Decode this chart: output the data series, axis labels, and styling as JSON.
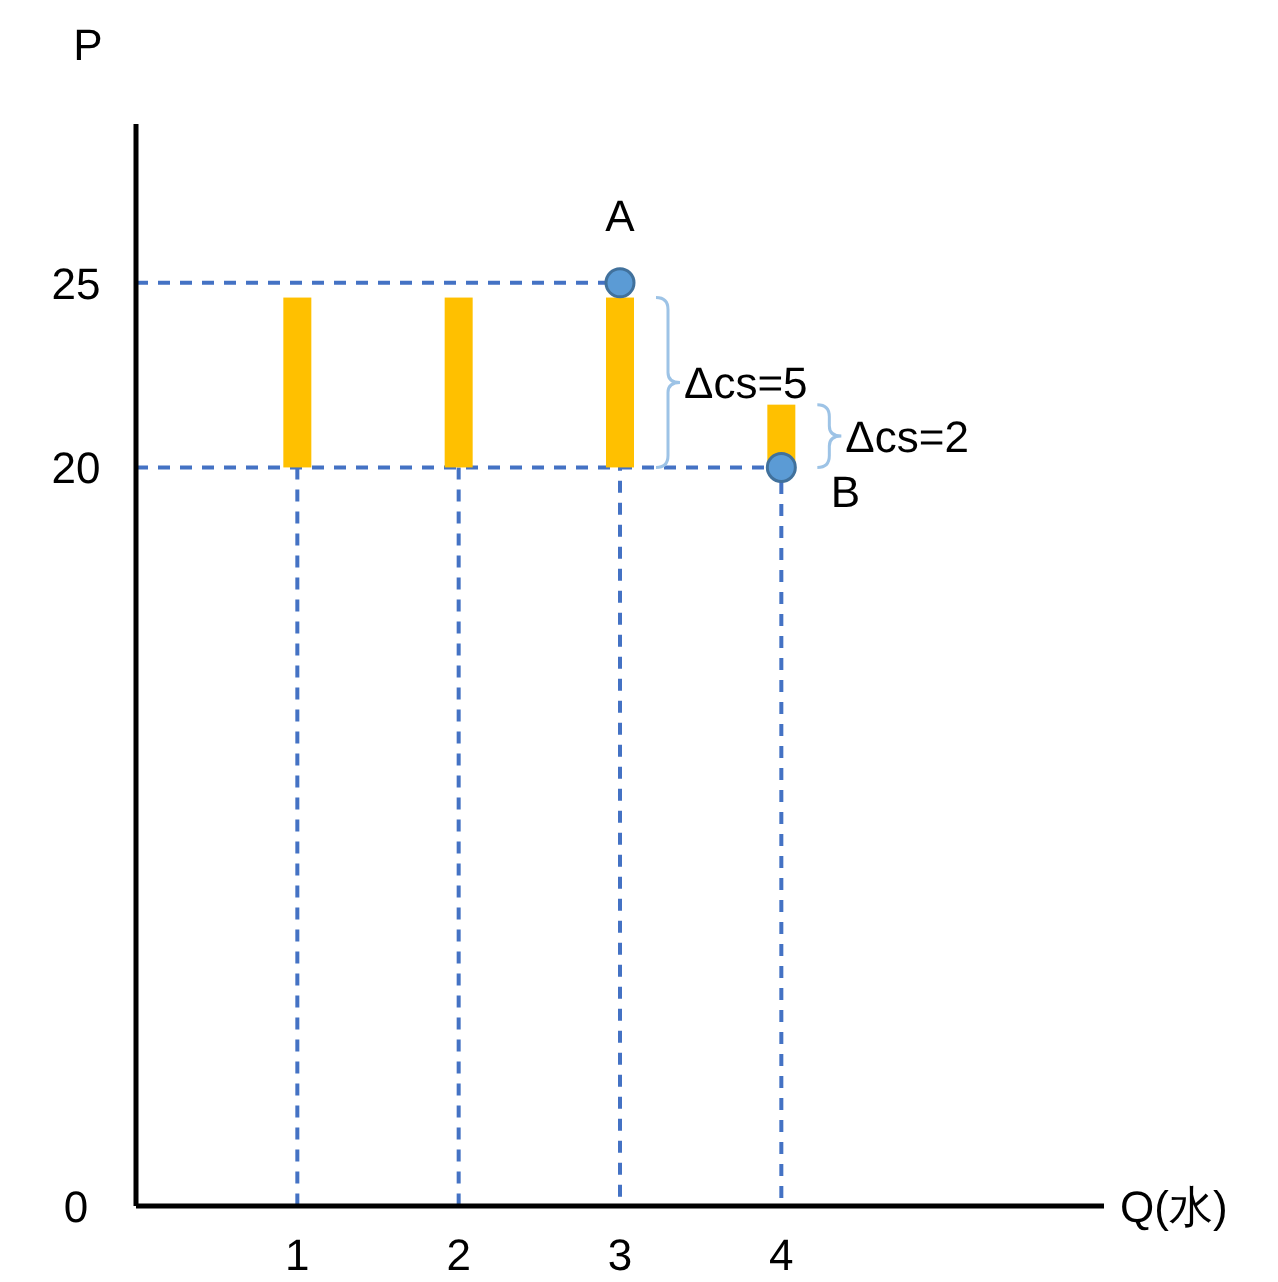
{
  "chart_data": {
    "type": "bar",
    "xlabel": "Q(水)",
    "ylabel": "P",
    "x": [
      1,
      2,
      3,
      4
    ],
    "values": [
      4.6,
      4.6,
      4.6,
      1.7
    ],
    "base": [
      20,
      20,
      20,
      20
    ],
    "color": "#ffc000",
    "xlim": [
      0,
      6
    ],
    "ylim": [
      0,
      29.3
    ],
    "xticks": [
      1,
      2,
      3,
      4
    ],
    "yticks": [
      0,
      20,
      25
    ],
    "series": [
      {
        "type": "line",
        "x": [
          0,
          3,
          3
        ],
        "values": [
          25,
          25,
          0
        ],
        "color": "#4472c4"
      },
      {
        "type": "line",
        "x": [
          0,
          4,
          4
        ],
        "values": [
          20,
          20,
          0
        ],
        "color": "#4472c4"
      },
      {
        "type": "line",
        "x": [
          1,
          1
        ],
        "values": [
          20,
          0
        ],
        "color": "#4472c4"
      },
      {
        "type": "line",
        "x": [
          2,
          2
        ],
        "values": [
          20,
          0
        ],
        "color": "#4472c4"
      },
      {
        "type": "scatter",
        "x": [
          3,
          4
        ],
        "values": [
          25,
          20
        ],
        "color": "#5b9bd5",
        "marker": "circle"
      }
    ],
    "line_style": "dashed",
    "grid": false,
    "annotations": [
      "A",
      "B",
      "Δcs=5",
      "Δcs=2"
    ]
  }
}
